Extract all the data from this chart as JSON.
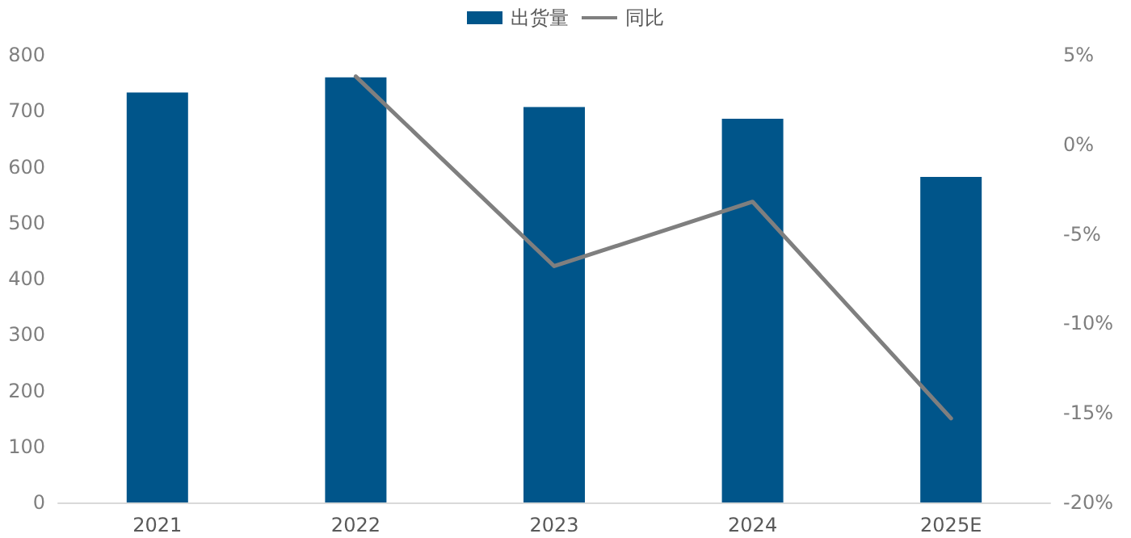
{
  "chart_data": {
    "type": "bar",
    "categories": [
      "2021",
      "2022",
      "2023",
      "2024",
      "2025E"
    ],
    "series": [
      {
        "name": "出货量",
        "color": "#00558a",
        "values": [
          733,
          760,
          707,
          686,
          582
        ]
      },
      {
        "name": "同比",
        "type": "line",
        "axis": "y2",
        "color": "#7f7f7f",
        "values": [
          null,
          3.8,
          -6.8,
          -3.2,
          -15.3
        ]
      }
    ],
    "ylim": [
      0,
      800
    ],
    "yticks": [
      0,
      100,
      200,
      300,
      400,
      500,
      600,
      700,
      800
    ],
    "y2lim": [
      -20,
      5
    ],
    "y2ticks": [
      {
        "value": -20,
        "label": "-20%"
      },
      {
        "value": -15,
        "label": "-15%"
      },
      {
        "value": -10,
        "label": "-10%"
      },
      {
        "value": -5,
        "label": "-5%"
      },
      {
        "value": 0,
        "label": "0%"
      },
      {
        "value": 5,
        "label": "5%"
      }
    ],
    "grid": false,
    "legend": "top",
    "marker": "none"
  }
}
